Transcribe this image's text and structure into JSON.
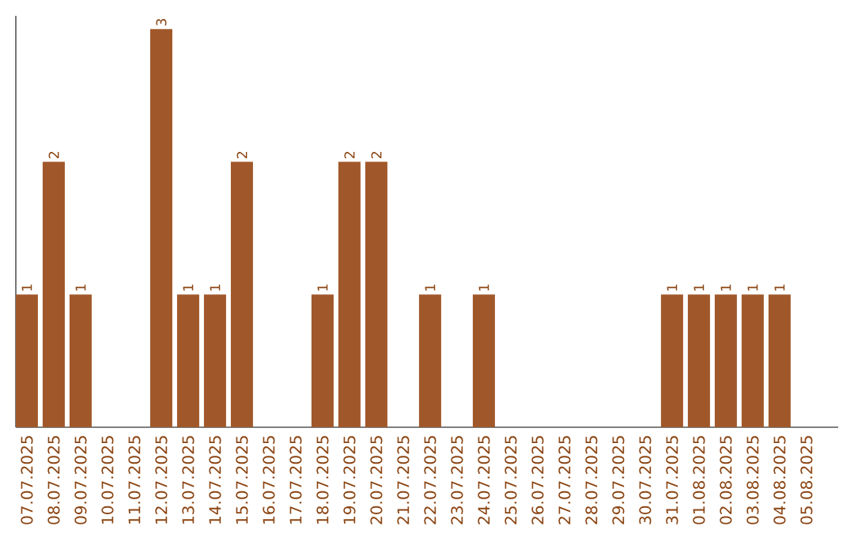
{
  "chart_data": {
    "type": "bar",
    "categories": [
      "07.07.2025",
      "08.07.2025",
      "09.07.2025",
      "10.07.2025",
      "11.07.2025",
      "12.07.2025",
      "13.07.2025",
      "14.07.2025",
      "15.07.2025",
      "16.07.2025",
      "17.07.2025",
      "18.07.2025",
      "19.07.2025",
      "20.07.2025",
      "21.07.2025",
      "22.07.2025",
      "23.07.2025",
      "24.07.2025",
      "25.07.2025",
      "26.07.2025",
      "27.07.2025",
      "28.07.2025",
      "29.07.2025",
      "30.07.2025",
      "31.07.2025",
      "01.08.2025",
      "02.08.2025",
      "03.08.2025",
      "04.08.2025",
      "05.08.2025"
    ],
    "values": [
      1,
      2,
      1,
      0,
      0,
      3,
      1,
      1,
      2,
      0,
      0,
      1,
      2,
      2,
      0,
      1,
      0,
      1,
      0,
      0,
      0,
      0,
      0,
      0,
      1,
      1,
      1,
      1,
      1,
      0
    ],
    "value_labels": [
      "1",
      "2",
      "1",
      null,
      null,
      "3",
      "1",
      "1",
      "2",
      null,
      null,
      "1",
      "2",
      "2",
      null,
      "1",
      null,
      "1",
      null,
      null,
      null,
      null,
      null,
      null,
      "1",
      "1",
      "1",
      "1",
      "1",
      null
    ],
    "color": "#a0582a",
    "ylim": [
      0,
      3.1
    ],
    "tick_labels": "x"
  }
}
